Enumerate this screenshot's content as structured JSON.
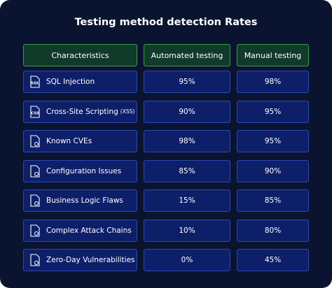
{
  "title": "Testing method detection Rates",
  "table": {
    "header": [
      "Characteristics",
      "Automated testing",
      "Manual testing"
    ],
    "rows": [
      {
        "icon_text": "SQL",
        "label": "SQL Injection",
        "automated": "95%",
        "manual": "98%"
      },
      {
        "icon_text": "CSS",
        "label": "Cross-Site Scripting",
        "note": "(XSS)",
        "automated": "90%",
        "manual": "95%"
      },
      {
        "label": "Known CVEs",
        "automated": "98%",
        "manual": "95%"
      },
      {
        "label": "Configuration Issues",
        "automated": "85%",
        "manual": "90%"
      },
      {
        "label": "Business Logic Flaws",
        "automated": "15%",
        "manual": "85%"
      },
      {
        "label": "Complex Attack Chains",
        "automated": "10%",
        "manual": "80%"
      },
      {
        "label": "Zero-Day Vulnerabilities",
        "automated": "0%",
        "manual": "45%"
      }
    ]
  }
}
